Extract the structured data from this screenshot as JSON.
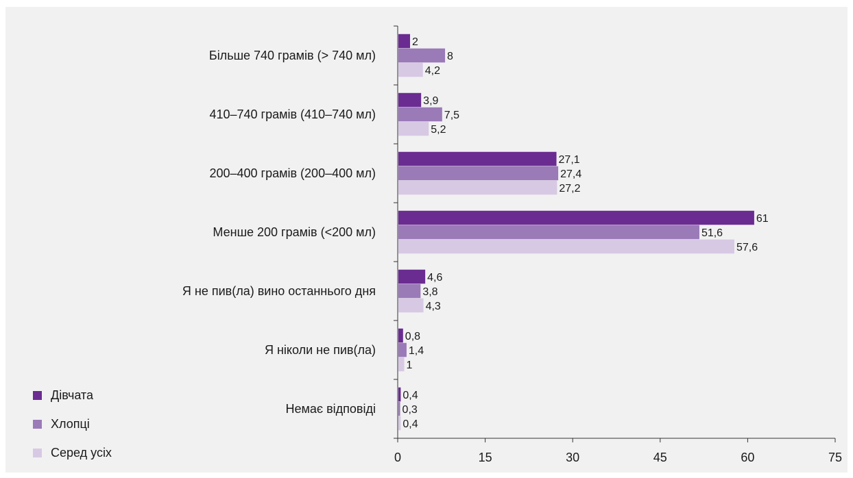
{
  "chart_data": {
    "type": "bar",
    "orientation": "horizontal",
    "categories": [
      "Більше 740 грамів (> 740 мл)",
      "410–740 грамів (410–740 мл)",
      "200–400 грамів (200–400 мл)",
      "Менше 200 грамів (<200 мл)",
      "Я не пив(ла) вино останнього дня",
      "Я ніколи не пив(ла)",
      "Немає відповіді"
    ],
    "series": [
      {
        "name": "Дівчата",
        "color": "#6a2c91",
        "values": [
          2,
          3.9,
          27.1,
          61,
          4.6,
          0.8,
          0.4
        ],
        "labels": [
          "2",
          "3,9",
          "27,1",
          "61",
          "4,6",
          "0,8",
          "0,4"
        ]
      },
      {
        "name": "Хлопці",
        "color": "#9b7ab8",
        "values": [
          8,
          7.5,
          27.4,
          51.6,
          3.8,
          1.4,
          0.3
        ],
        "labels": [
          "8",
          "7,5",
          "27,4",
          "51,6",
          "3,8",
          "1,4",
          "0,3"
        ]
      },
      {
        "name": "Серед усіх",
        "color": "#d7c9e4",
        "values": [
          4.2,
          5.2,
          27.2,
          57.6,
          4.3,
          1,
          0.4
        ],
        "labels": [
          "4,2",
          "5,2",
          "27,2",
          "57,6",
          "4,3",
          "1",
          "0,4"
        ]
      }
    ],
    "xlim": [
      0,
      75
    ],
    "xticks": [
      0,
      15,
      30,
      45,
      60,
      75
    ],
    "xtick_labels": [
      "0",
      "15",
      "30",
      "45",
      "60",
      "75"
    ],
    "title": "",
    "xlabel": "",
    "ylabel": "",
    "grid": false,
    "legend_position": "bottom-left"
  }
}
